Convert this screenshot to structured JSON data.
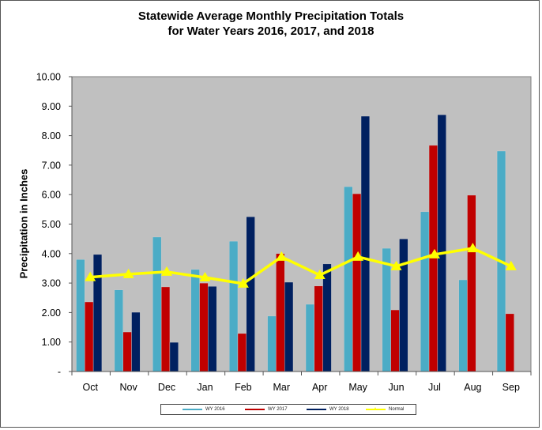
{
  "chart_data": {
    "type": "bar",
    "title": "Statewide Average Monthly Precipitation Totals",
    "subtitle": "for Water Years 2016, 2017, and 2018",
    "xlabel": "",
    "ylabel": "Precipitation in Inches",
    "ylim": [
      0,
      10
    ],
    "yticks": [
      "-",
      "1.00",
      "2.00",
      "3.00",
      "4.00",
      "5.00",
      "6.00",
      "7.00",
      "8.00",
      "9.00",
      "10.00"
    ],
    "grid": false,
    "legend_position": "bottom",
    "categories": [
      "Oct",
      "Nov",
      "Dec",
      "Jan",
      "Feb",
      "Mar",
      "Apr",
      "May",
      "Jun",
      "Jul",
      "Aug",
      "Sep"
    ],
    "series": [
      {
        "name": "WY 2016",
        "type": "bar",
        "color": "#4BACC6",
        "values": [
          3.8,
          2.77,
          4.56,
          3.46,
          4.42,
          1.88,
          2.28,
          6.27,
          4.18,
          5.42,
          3.11,
          7.48
        ]
      },
      {
        "name": "WY 2017",
        "type": "bar",
        "color": "#C00000",
        "values": [
          2.36,
          1.34,
          2.87,
          3.0,
          1.29,
          4.0,
          2.9,
          6.03,
          2.09,
          7.67,
          5.98,
          1.96
        ]
      },
      {
        "name": "WY 2018",
        "type": "bar",
        "color": "#002060",
        "values": [
          3.97,
          2.01,
          0.99,
          2.89,
          5.25,
          3.03,
          3.65,
          8.66,
          4.5,
          8.71,
          null,
          null
        ]
      },
      {
        "name": "Normal",
        "type": "line",
        "color": "#FFFF00",
        "marker": "triangle",
        "values": [
          3.2,
          3.3,
          3.38,
          3.19,
          2.98,
          3.89,
          3.27,
          3.89,
          3.57,
          3.97,
          4.18,
          3.57
        ]
      }
    ],
    "plot_background": "#C0C0C0"
  }
}
